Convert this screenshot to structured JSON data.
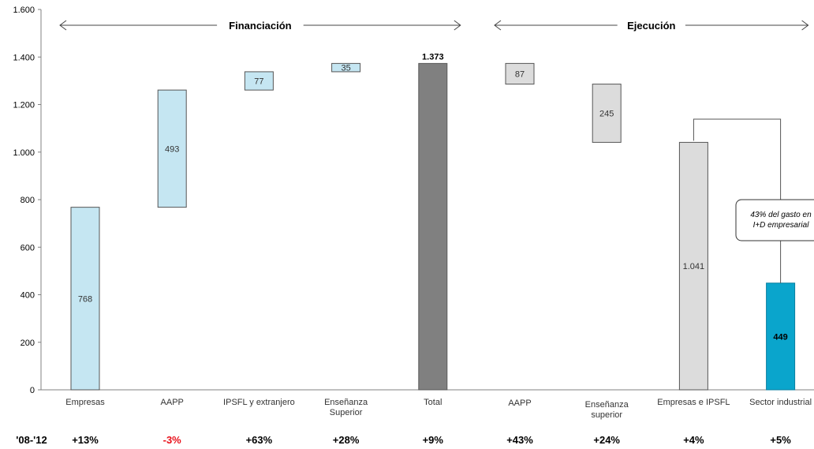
{
  "chart_data": {
    "type": "waterfall",
    "ylim": [
      0,
      1600
    ],
    "yticks": [
      0,
      200,
      400,
      600,
      800,
      1000,
      1200,
      1400,
      1600
    ],
    "ytick_labels": [
      "0",
      "200",
      "400",
      "600",
      "800",
      "1.000",
      "1.200",
      "1.400",
      "1.600"
    ],
    "groups": [
      {
        "label": "Financiación",
        "from_index": 0,
        "to_index": 4
      },
      {
        "label": "Ejecución",
        "from_index": 5,
        "to_index": 8
      }
    ],
    "bars": [
      {
        "category": [
          "Empresas"
        ],
        "start": 0,
        "end": 768,
        "value": 768,
        "label": "768",
        "style": "financiacion",
        "bold": false
      },
      {
        "category": [
          "AAPP"
        ],
        "start": 768,
        "end": 1261,
        "value": 493,
        "label": "493",
        "style": "financiacion",
        "bold": false
      },
      {
        "category": [
          "IPSFL y extranjero"
        ],
        "start": 1261,
        "end": 1338,
        "value": 77,
        "label": "77",
        "style": "financiacion",
        "bold": false
      },
      {
        "category": [
          "Enseñanza",
          "Superior"
        ],
        "start": 1338,
        "end": 1373,
        "value": 35,
        "label": "35",
        "style": "financiacion",
        "bold": false
      },
      {
        "category": [
          "Total"
        ],
        "start": 0,
        "end": 1373,
        "value": 1373,
        "label": "1.373",
        "style": "total",
        "bold": true
      },
      {
        "category": [
          "AAPP"
        ],
        "start": 1286,
        "end": 1373,
        "value": 87,
        "label": "87",
        "style": "ejecucion",
        "bold": false
      },
      {
        "category": [
          "Enseñanza",
          "superior"
        ],
        "start": 1041,
        "end": 1286,
        "value": 245,
        "label": "245",
        "style": "ejecucion",
        "bold": false
      },
      {
        "category": [
          "Empresas e IPSFL"
        ],
        "start": 0,
        "end": 1041,
        "value": 1041,
        "label": "1.041",
        "style": "ejecucion",
        "bold": false
      },
      {
        "category": [
          "Sector industrial"
        ],
        "start": 0,
        "end": 449,
        "value": 449,
        "label": "449",
        "style": "industrial",
        "bold": true
      }
    ],
    "annotation": {
      "lines": [
        "43% del gasto en",
        "I+D empresarial"
      ],
      "from_index": 7,
      "to_index": 8
    },
    "growth_row": {
      "label": "'08-'12",
      "values": [
        {
          "text": "+13%",
          "color": "#000000"
        },
        {
          "text": "-3%",
          "color": "#e8101a"
        },
        {
          "text": "+63%",
          "color": "#000000"
        },
        {
          "text": "+28%",
          "color": "#000000"
        },
        {
          "text": "+9%",
          "color": "#000000"
        },
        {
          "text": "+43%",
          "color": "#000000"
        },
        {
          "text": "+24%",
          "color": "#000000"
        },
        {
          "text": "+4%",
          "color": "#000000"
        },
        {
          "text": "+5%",
          "color": "#000000"
        }
      ]
    },
    "colors": {
      "financiacion": "#c5e6f2",
      "total": "#808080",
      "ejecucion": "#dcdcdc",
      "industrial": "#0aa5cc",
      "axis": "#808080"
    }
  }
}
